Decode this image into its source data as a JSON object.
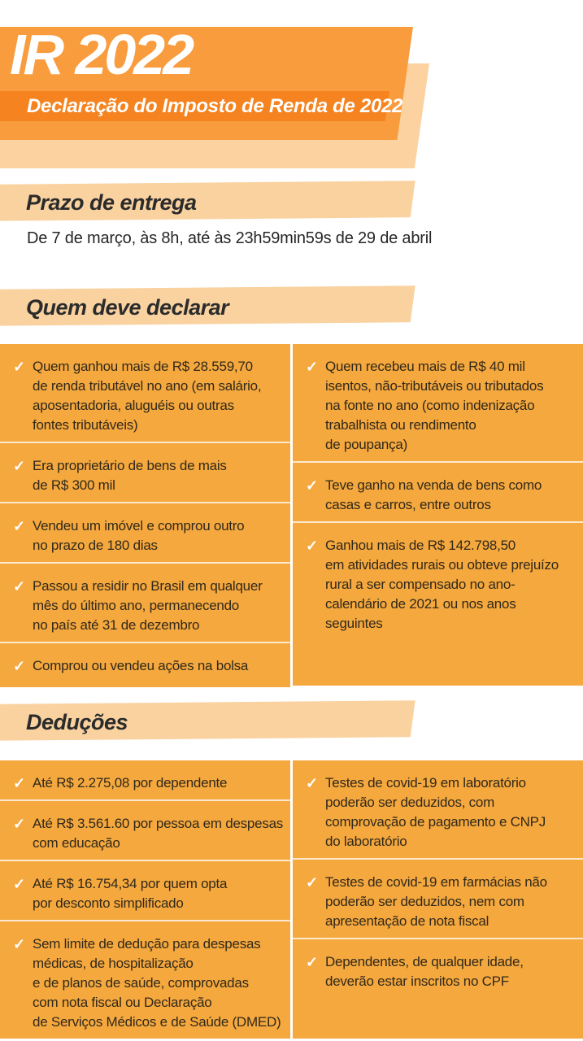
{
  "header": {
    "title": "IR 2022",
    "subtitle": "Declaração do Imposto de Renda de 2022"
  },
  "icons": {
    "check": "✓"
  },
  "colors": {
    "header_orange": "#f89c3e",
    "header_peach": "#fbd2a0",
    "subtitle_bar_orange": "#f5831f",
    "section_banner_peach": "#f9d2a0",
    "list_background_orange": "#f5a83e",
    "divider_white": "#ffffff",
    "text_dark": "#31291a",
    "check_white": "#ffffff"
  },
  "sections": {
    "prazo": {
      "title": "Prazo de entrega",
      "body": "De 7 de março, às 8h, até às 23h59min59s de 29 de abril"
    },
    "quem": {
      "title": "Quem deve declarar",
      "left_items": [
        "Quem ganhou mais de R$ 28.559,70\nde renda tributável no ano (em salário,\naposentadoria, aluguéis ou outras\nfontes tributáveis)",
        "Era proprietário de bens de mais\nde R$ 300 mil",
        "Vendeu um imóvel e comprou outro\nno prazo de 180 dias",
        "Passou a residir no Brasil em qualquer\nmês do último ano, permanecendo\nno país até 31 de dezembro",
        "Comprou ou vendeu ações na bolsa"
      ],
      "right_items": [
        "Quem recebeu mais de R$ 40 mil\nisentos, não-tributáveis ou tributados\nna fonte no ano (como indenização\ntrabalhista ou rendimento\nde poupança)",
        "Teve ganho na venda de bens como\ncasas e carros, entre outros",
        "Ganhou mais de R$ 142.798,50\nem atividades rurais ou obteve prejuízo\nrural a ser compensado no ano-\ncalendário de 2021 ou nos anos\nseguintes"
      ]
    },
    "deducoes": {
      "title": "Deduções",
      "left_items": [
        "Até R$ 2.275,08 por dependente",
        "Até R$ 3.561.60 por pessoa em despesas\ncom educação",
        "Até R$ 16.754,34 por quem opta\npor desconto simplificado",
        "Sem limite de dedução para despesas\nmédicas, de hospitalização\ne de planos de saúde, comprovadas\ncom nota fiscal ou Declaração\nde Serviços Médicos e de Saúde (DMED)"
      ],
      "right_items": [
        "Testes de covid-19 em laboratório\npoderão ser deduzidos, com\ncomprovação de pagamento e CNPJ\ndo laboratório",
        "Testes de covid-19 em farmácias não\npoderão ser deduzidos, nem com\napresentação de nota fiscal",
        "Dependentes, de qualquer idade,\ndeverão estar inscritos no CPF"
      ]
    }
  }
}
